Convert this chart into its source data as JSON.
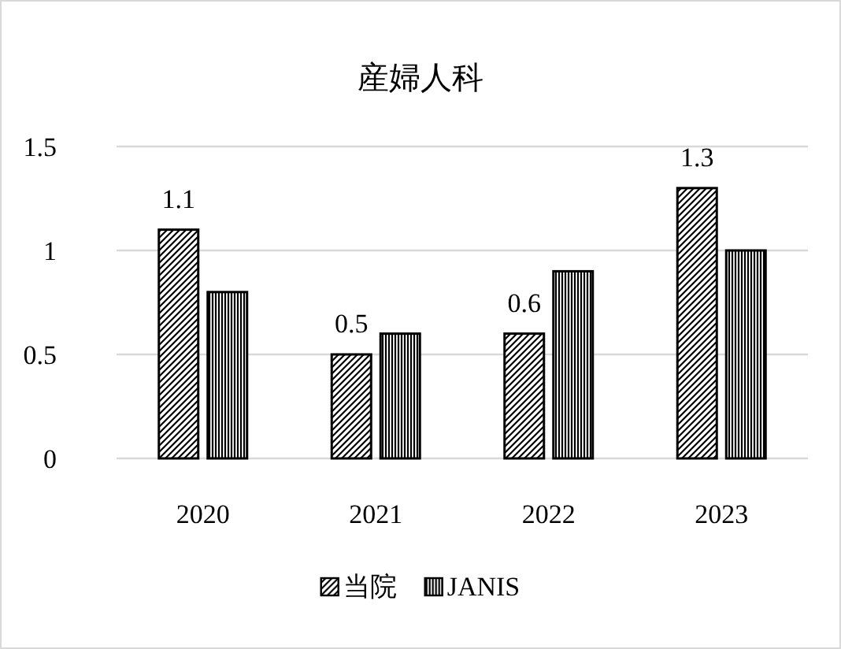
{
  "chart_data": {
    "type": "bar",
    "title": "産婦人科",
    "categories": [
      "2020",
      "2021",
      "2022",
      "2023"
    ],
    "series": [
      {
        "name": "当院",
        "color": "#000000",
        "values": [
          1.1,
          0.5,
          0.6,
          1.3
        ],
        "value_labels": [
          "1.1",
          "0.5",
          "0.6",
          "1.3"
        ]
      },
      {
        "name": "JANIS",
        "color": "#000000",
        "values": [
          0.8,
          0.6,
          0.9,
          1.0
        ]
      }
    ],
    "ylim": [
      0,
      1.5
    ],
    "yticks": [
      0,
      0.5,
      1,
      1.5
    ],
    "grid": "y",
    "legend": "bottom"
  }
}
